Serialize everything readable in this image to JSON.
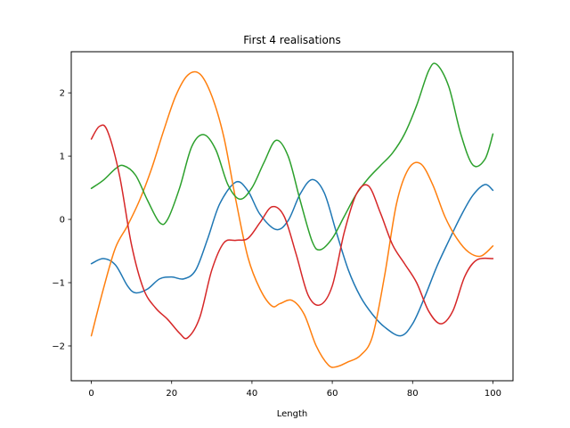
{
  "chart_data": {
    "type": "line",
    "title": "First 4 realisations",
    "xlabel": "Length",
    "ylabel": "",
    "xlim": [
      -5,
      105
    ],
    "ylim": [
      -2.55,
      2.65
    ],
    "xticks": [
      0,
      20,
      40,
      60,
      80,
      100
    ],
    "yticks": [
      -2,
      -1,
      0,
      1,
      2
    ],
    "grid": false,
    "legend": "none",
    "series": [
      {
        "color": "#1f77b4",
        "x": [
          0,
          3,
          6,
          9,
          11,
          14,
          17,
          20,
          23,
          26,
          29,
          32,
          36,
          39,
          42,
          46,
          49,
          52,
          55,
          58,
          61,
          64,
          67,
          70,
          73,
          77,
          80,
          83,
          86,
          89,
          92,
          95,
          98,
          100
        ],
        "y": [
          -0.7,
          -0.62,
          -0.72,
          -1.05,
          -1.16,
          -1.1,
          -0.94,
          -0.91,
          -0.94,
          -0.8,
          -0.3,
          0.25,
          0.59,
          0.45,
          0.08,
          -0.16,
          -0.02,
          0.4,
          0.63,
          0.42,
          -0.2,
          -0.8,
          -1.22,
          -1.5,
          -1.7,
          -1.84,
          -1.65,
          -1.23,
          -0.75,
          -0.34,
          0.05,
          0.38,
          0.55,
          0.46
        ]
      },
      {
        "color": "#ff7f0e",
        "x": [
          0,
          3,
          6,
          9,
          12,
          15,
          18,
          21,
          24,
          27,
          30,
          33,
          36,
          39,
          42,
          45,
          47,
          50,
          53,
          56,
          59,
          61,
          64,
          67,
          70,
          73,
          76,
          79,
          82,
          85,
          88,
          91,
          94,
          97,
          100
        ],
        "y": [
          -1.84,
          -1.1,
          -0.45,
          -0.1,
          0.3,
          0.8,
          1.4,
          1.95,
          2.28,
          2.3,
          1.95,
          1.3,
          0.3,
          -0.6,
          -1.1,
          -1.37,
          -1.33,
          -1.28,
          -1.5,
          -2.0,
          -2.3,
          -2.33,
          -2.25,
          -2.15,
          -1.85,
          -0.9,
          0.25,
          0.8,
          0.88,
          0.55,
          0.05,
          -0.3,
          -0.52,
          -0.58,
          -0.42
        ]
      },
      {
        "color": "#2ca02c",
        "x": [
          0,
          3,
          6,
          8,
          11,
          14,
          17,
          19,
          22,
          25,
          28,
          31,
          34,
          37,
          40,
          43,
          46,
          49,
          52,
          55,
          57,
          60,
          63,
          66,
          69,
          72,
          75,
          78,
          81,
          84,
          86,
          89,
          92,
          95,
          98,
          100
        ],
        "y": [
          0.49,
          0.62,
          0.8,
          0.85,
          0.7,
          0.3,
          -0.05,
          0.0,
          0.5,
          1.15,
          1.34,
          1.1,
          0.55,
          0.32,
          0.5,
          0.9,
          1.25,
          1.0,
          0.3,
          -0.35,
          -0.48,
          -0.3,
          0.05,
          0.4,
          0.65,
          0.85,
          1.05,
          1.35,
          1.8,
          2.35,
          2.45,
          2.1,
          1.35,
          0.86,
          0.95,
          1.35
        ]
      },
      {
        "color": "#d62728",
        "x": [
          0,
          2,
          4,
          7,
          10,
          13,
          16,
          19,
          22,
          24,
          27,
          30,
          33,
          36,
          39,
          42,
          45,
          48,
          51,
          54,
          57,
          60,
          63,
          66,
          69,
          72,
          75,
          78,
          81,
          84,
          87,
          90,
          93,
          96,
          100
        ],
        "y": [
          1.27,
          1.47,
          1.4,
          0.7,
          -0.4,
          -1.1,
          -1.4,
          -1.58,
          -1.8,
          -1.87,
          -1.55,
          -0.8,
          -0.37,
          -0.33,
          -0.3,
          -0.05,
          0.2,
          0.05,
          -0.55,
          -1.2,
          -1.35,
          -1.05,
          -0.2,
          0.4,
          0.53,
          0.1,
          -0.4,
          -0.7,
          -1.0,
          -1.45,
          -1.65,
          -1.45,
          -0.9,
          -0.64,
          -0.62
        ]
      }
    ]
  }
}
